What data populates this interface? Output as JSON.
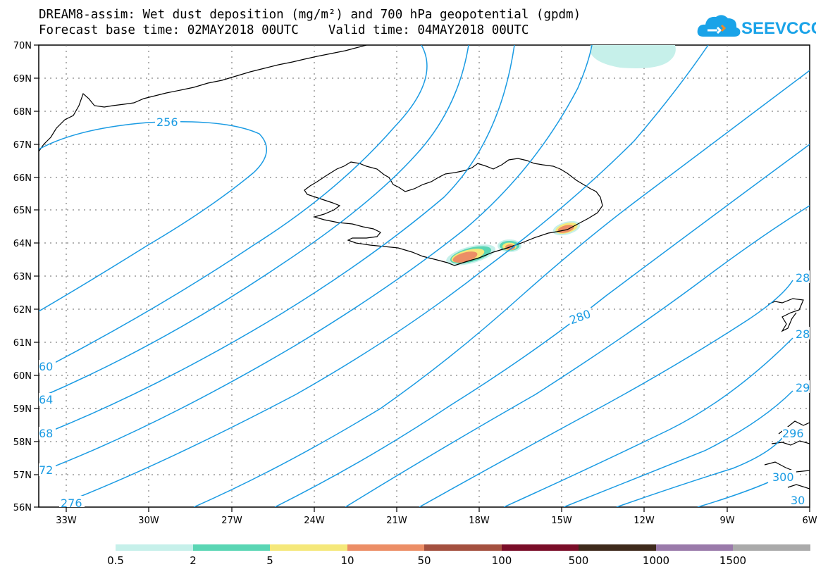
{
  "header": {
    "title_line1": "DREAM8-assim: Wet dust deposition (mg/m²) and 700 hPa geopotential (gpdm)",
    "title_line2": "Forecast base time: 02MAY2018 00UTC    Valid time: 04MAY2018 00UTC"
  },
  "logo": {
    "text": "SEEVCCC",
    "icon": "cloud-logo-icon",
    "color": "#1aa3e8"
  },
  "map": {
    "region": "Iceland / North Atlantic",
    "lat_labels": [
      "70N",
      "69N",
      "68N",
      "67N",
      "66N",
      "65N",
      "64N",
      "63N",
      "62N",
      "61N",
      "60N",
      "59N",
      "58N",
      "57N",
      "56N"
    ],
    "lon_labels": [
      "33W",
      "30W",
      "27W",
      "24W",
      "21W",
      "18W",
      "15W",
      "12W",
      "9W",
      "6W"
    ],
    "contour_color": "#1a9be3",
    "contour_labels": [
      "256",
      "60",
      "64",
      "68",
      "72",
      "276",
      "280",
      "28",
      "28",
      "29",
      "296",
      "300",
      "30"
    ],
    "colorbar": {
      "labels": [
        "0.5",
        "2",
        "5",
        "10",
        "50",
        "100",
        "500",
        "1000",
        "1500"
      ],
      "colors": [
        "#c6f0ea",
        "#5ad6b4",
        "#f5e87a",
        "#ec8e66",
        "#a4503f",
        "#7a0d28",
        "#3e2a1c",
        "#9a7aaa",
        "#aaaaaa"
      ]
    }
  }
}
